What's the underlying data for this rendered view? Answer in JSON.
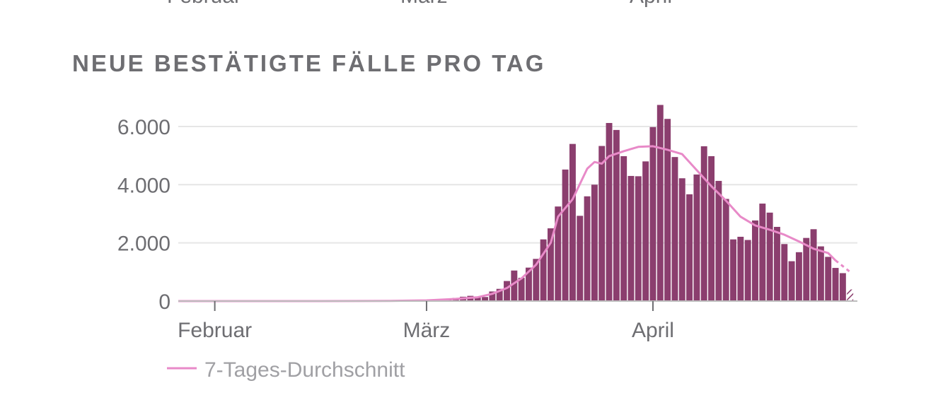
{
  "top_fragment": {
    "labels": [
      "Februar",
      "März",
      "April"
    ]
  },
  "chart_data": {
    "type": "bar",
    "title": "NEUE BESTÄTIGTE FÄLLE PRO TAG",
    "xlabel": "",
    "ylabel": "",
    "ylim": [
      0,
      6800
    ],
    "yticks": [
      0,
      2000,
      4000,
      6000
    ],
    "ytick_labels": [
      "0",
      "2.000",
      "4.000",
      "6.000"
    ],
    "x_range": [
      "2020-01-27",
      "2020-04-29"
    ],
    "xticks": [
      "2020-02-01",
      "2020-03-01",
      "2020-04-01"
    ],
    "xtick_labels": [
      "Februar",
      "März",
      "April"
    ],
    "grid": true,
    "legend_position": "bottom-left",
    "bar_color": "#8b3e6e",
    "avg_color": "#e88ac8",
    "bars": [
      [
        "2020-03-01",
        30
      ],
      [
        "2020-03-02",
        40
      ],
      [
        "2020-03-03",
        60
      ],
      [
        "2020-03-04",
        80
      ],
      [
        "2020-03-05",
        110
      ],
      [
        "2020-03-06",
        150
      ],
      [
        "2020-03-07",
        180
      ],
      [
        "2020-03-08",
        150
      ],
      [
        "2020-03-09",
        140
      ],
      [
        "2020-03-10",
        330
      ],
      [
        "2020-03-11",
        420
      ],
      [
        "2020-03-12",
        690
      ],
      [
        "2020-03-13",
        1050
      ],
      [
        "2020-03-14",
        800
      ],
      [
        "2020-03-15",
        1150
      ],
      [
        "2020-03-16",
        1450
      ],
      [
        "2020-03-17",
        2120
      ],
      [
        "2020-03-18",
        2500
      ],
      [
        "2020-03-19",
        3250
      ],
      [
        "2020-03-20",
        4520
      ],
      [
        "2020-03-21",
        5400
      ],
      [
        "2020-03-22",
        2930
      ],
      [
        "2020-03-23",
        3600
      ],
      [
        "2020-03-24",
        4000
      ],
      [
        "2020-03-25",
        5330
      ],
      [
        "2020-03-26",
        6120
      ],
      [
        "2020-03-27",
        5880
      ],
      [
        "2020-03-28",
        4980
      ],
      [
        "2020-03-29",
        4300
      ],
      [
        "2020-03-30",
        4290
      ],
      [
        "2020-03-31",
        4800
      ],
      [
        "2020-04-01",
        5980
      ],
      [
        "2020-04-02",
        6740
      ],
      [
        "2020-04-03",
        6260
      ],
      [
        "2020-04-04",
        4950
      ],
      [
        "2020-04-05",
        4220
      ],
      [
        "2020-04-06",
        3670
      ],
      [
        "2020-04-07",
        4350
      ],
      [
        "2020-04-08",
        5320
      ],
      [
        "2020-04-09",
        4980
      ],
      [
        "2020-04-10",
        4130
      ],
      [
        "2020-04-11",
        3510
      ],
      [
        "2020-04-12",
        2120
      ],
      [
        "2020-04-13",
        2210
      ],
      [
        "2020-04-14",
        2100
      ],
      [
        "2020-04-15",
        2770
      ],
      [
        "2020-04-16",
        3350
      ],
      [
        "2020-04-17",
        3040
      ],
      [
        "2020-04-18",
        2550
      ],
      [
        "2020-04-19",
        1960
      ],
      [
        "2020-04-20",
        1370
      ],
      [
        "2020-04-21",
        1680
      ],
      [
        "2020-04-22",
        2170
      ],
      [
        "2020-04-23",
        2470
      ],
      [
        "2020-04-24",
        1880
      ],
      [
        "2020-04-25",
        1520
      ],
      [
        "2020-04-26",
        1140
      ],
      [
        "2020-04-27",
        960
      ]
    ],
    "partial_bar": [
      "2020-04-28",
      400
    ],
    "series": [
      {
        "name": "7-Tages-Durchschnitt",
        "points": [
          [
            "2020-01-27",
            0
          ],
          [
            "2020-02-15",
            0
          ],
          [
            "2020-02-25",
            5
          ],
          [
            "2020-03-01",
            25
          ],
          [
            "2020-03-05",
            75
          ],
          [
            "2020-03-08",
            130
          ],
          [
            "2020-03-10",
            250
          ],
          [
            "2020-03-12",
            450
          ],
          [
            "2020-03-14",
            780
          ],
          [
            "2020-03-16",
            1250
          ],
          [
            "2020-03-18",
            2000
          ],
          [
            "2020-03-19",
            2900
          ],
          [
            "2020-03-21",
            3500
          ],
          [
            "2020-03-23",
            4550
          ],
          [
            "2020-03-24",
            4780
          ],
          [
            "2020-03-25",
            4720
          ],
          [
            "2020-03-26",
            4980
          ],
          [
            "2020-03-28",
            5150
          ],
          [
            "2020-03-30",
            5300
          ],
          [
            "2020-04-01",
            5320
          ],
          [
            "2020-04-03",
            5200
          ],
          [
            "2020-04-05",
            5050
          ],
          [
            "2020-04-07",
            4500
          ],
          [
            "2020-04-09",
            3950
          ],
          [
            "2020-04-11",
            3450
          ],
          [
            "2020-04-13",
            2900
          ],
          [
            "2020-04-15",
            2600
          ],
          [
            "2020-04-17",
            2450
          ],
          [
            "2020-04-19",
            2280
          ],
          [
            "2020-04-21",
            2050
          ],
          [
            "2020-04-23",
            1800
          ],
          [
            "2020-04-25",
            1650
          ],
          [
            "2020-04-26",
            1400
          ]
        ],
        "dashed_tail": [
          [
            "2020-04-26",
            1400
          ],
          [
            "2020-04-28",
            1000
          ]
        ]
      }
    ]
  }
}
